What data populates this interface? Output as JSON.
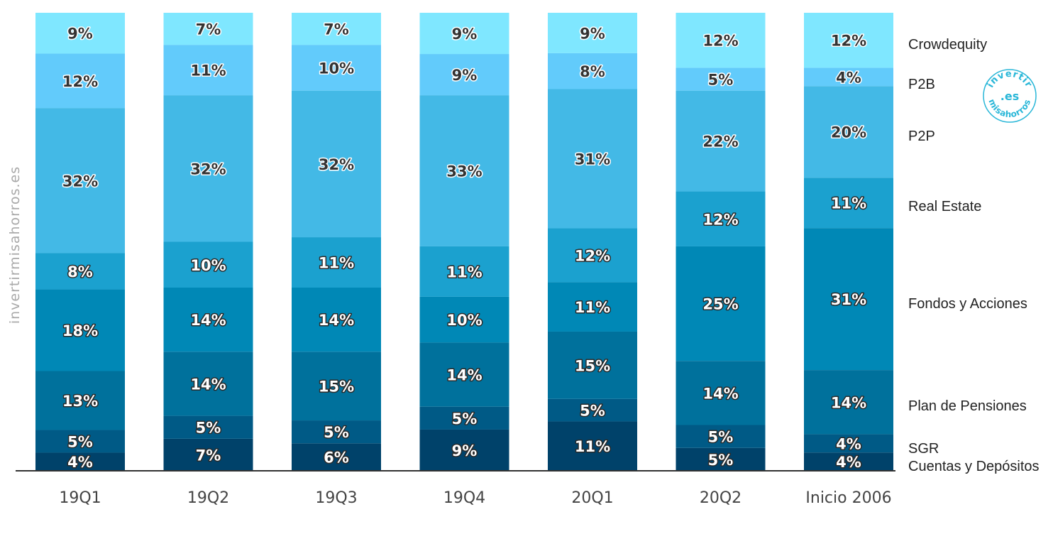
{
  "watermark": "invertirmisahorros.es",
  "logo": {
    "top": "invertir",
    "middle": ".es",
    "bottom": "misahorros",
    "color": "#2ab7d8"
  },
  "chart_data": {
    "type": "bar",
    "stacked": true,
    "normalized": true,
    "categories": [
      "19Q1",
      "19Q2",
      "19Q3",
      "19Q4",
      "20Q1",
      "20Q2",
      "Inicio 2006"
    ],
    "legend_position": "right",
    "grid": false,
    "series": [
      {
        "name": "Cuentas y Depósitos",
        "color": "#00426a",
        "values": [
          4,
          7,
          6,
          9,
          11,
          5,
          4
        ]
      },
      {
        "name": "SGR",
        "color": "#005a86",
        "values": [
          5,
          5,
          5,
          5,
          5,
          5,
          4
        ]
      },
      {
        "name": "Plan de Pensiones",
        "color": "#00719c",
        "values": [
          13,
          14,
          15,
          14,
          15,
          14,
          14
        ]
      },
      {
        "name": "Fondos y Acciones",
        "color": "#0088b6",
        "values": [
          18,
          14,
          14,
          10,
          11,
          25,
          31
        ]
      },
      {
        "name": "Real Estate",
        "color": "#1ba1cf",
        "values": [
          8,
          10,
          11,
          11,
          12,
          12,
          11
        ]
      },
      {
        "name": "P2P",
        "color": "#43b9e6",
        "values": [
          32,
          32,
          32,
          33,
          31,
          22,
          20
        ]
      },
      {
        "name": "P2B",
        "color": "#62cbfb",
        "values": [
          12,
          11,
          10,
          9,
          8,
          5,
          4
        ]
      },
      {
        "name": "Crowdequity",
        "color": "#7fe7ff",
        "values": [
          9,
          7,
          7,
          9,
          9,
          12,
          12
        ]
      }
    ]
  }
}
